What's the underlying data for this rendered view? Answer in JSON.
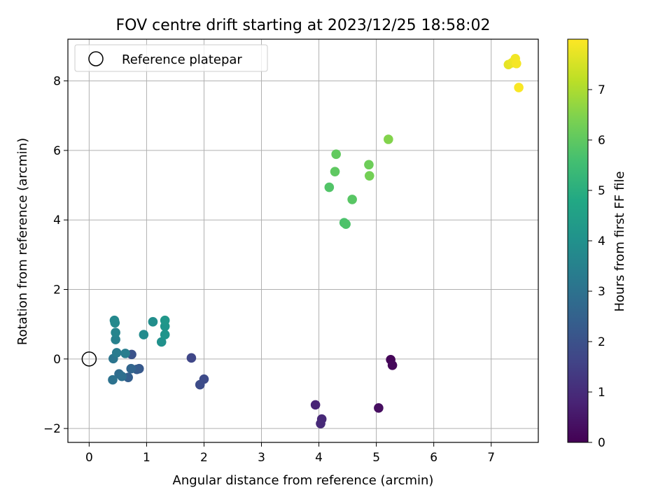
{
  "chart_data": {
    "type": "scatter",
    "title": "FOV centre drift starting at 2023/12/25 18:58:02",
    "xlabel": "Angular distance from reference (arcmin)",
    "ylabel": "Rotation from reference (arcmin)",
    "xlim": [
      -0.37,
      7.82
    ],
    "ylim": [
      -2.4,
      9.2
    ],
    "x_ticks": [
      0,
      1,
      2,
      3,
      4,
      5,
      6,
      7
    ],
    "y_ticks": [
      -2,
      0,
      2,
      4,
      6,
      8
    ],
    "grid": true,
    "legend": {
      "placement": "top-left",
      "entries": [
        {
          "label": "Reference platepar",
          "marker": "open-circle"
        }
      ]
    },
    "reference_point": {
      "x": 0,
      "y": 0
    },
    "colorbar": {
      "label": "Hours from first FF file",
      "range": [
        0,
        8
      ],
      "ticks": [
        0,
        1,
        2,
        3,
        4,
        5,
        6,
        7
      ],
      "colormap": "viridis"
    },
    "points": [
      {
        "x": 5.25,
        "y": -0.02,
        "c": 0.1
      },
      {
        "x": 5.28,
        "y": -0.18,
        "c": 0.15
      },
      {
        "x": 5.04,
        "y": -1.41,
        "c": 0.3
      },
      {
        "x": 3.94,
        "y": -1.32,
        "c": 0.8
      },
      {
        "x": 4.05,
        "y": -1.73,
        "c": 0.9
      },
      {
        "x": 4.03,
        "y": -1.86,
        "c": 0.95
      },
      {
        "x": 1.78,
        "y": 0.03,
        "c": 1.7
      },
      {
        "x": 2.0,
        "y": -0.58,
        "c": 1.8
      },
      {
        "x": 1.93,
        "y": -0.74,
        "c": 1.85
      },
      {
        "x": 0.74,
        "y": 0.13,
        "c": 2.0
      },
      {
        "x": 0.87,
        "y": -0.28,
        "c": 2.2
      },
      {
        "x": 0.83,
        "y": -0.3,
        "c": 2.3
      },
      {
        "x": 0.68,
        "y": -0.53,
        "c": 2.4
      },
      {
        "x": 0.73,
        "y": -0.28,
        "c": 2.6
      },
      {
        "x": 0.52,
        "y": -0.43,
        "c": 2.8
      },
      {
        "x": 0.57,
        "y": -0.5,
        "c": 2.9
      },
      {
        "x": 0.41,
        "y": -0.6,
        "c": 3.0
      },
      {
        "x": 0.42,
        "y": 0.01,
        "c": 3.1
      },
      {
        "x": 0.48,
        "y": 0.18,
        "c": 3.3
      },
      {
        "x": 0.63,
        "y": 0.16,
        "c": 3.4
      },
      {
        "x": 0.46,
        "y": 0.56,
        "c": 3.5
      },
      {
        "x": 0.46,
        "y": 0.76,
        "c": 3.6
      },
      {
        "x": 0.44,
        "y": 1.11,
        "c": 3.7
      },
      {
        "x": 0.45,
        "y": 1.04,
        "c": 3.75
      },
      {
        "x": 0.95,
        "y": 0.7,
        "c": 3.8
      },
      {
        "x": 1.11,
        "y": 1.07,
        "c": 3.9
      },
      {
        "x": 1.26,
        "y": 0.49,
        "c": 4.0
      },
      {
        "x": 1.32,
        "y": 0.7,
        "c": 4.1
      },
      {
        "x": 1.32,
        "y": 0.94,
        "c": 4.15
      },
      {
        "x": 1.32,
        "y": 1.11,
        "c": 4.2
      },
      {
        "x": 4.44,
        "y": 3.92,
        "c": 5.7
      },
      {
        "x": 4.47,
        "y": 3.88,
        "c": 5.75
      },
      {
        "x": 4.18,
        "y": 4.94,
        "c": 5.8
      },
      {
        "x": 4.58,
        "y": 4.59,
        "c": 5.9
      },
      {
        "x": 4.28,
        "y": 5.39,
        "c": 6.0
      },
      {
        "x": 4.3,
        "y": 5.89,
        "c": 6.05
      },
      {
        "x": 4.87,
        "y": 5.59,
        "c": 6.2
      },
      {
        "x": 4.88,
        "y": 5.27,
        "c": 6.3
      },
      {
        "x": 5.21,
        "y": 6.32,
        "c": 6.5
      },
      {
        "x": 7.3,
        "y": 8.47,
        "c": 7.7
      },
      {
        "x": 7.36,
        "y": 8.52,
        "c": 7.75
      },
      {
        "x": 7.4,
        "y": 8.57,
        "c": 7.8
      },
      {
        "x": 7.42,
        "y": 8.64,
        "c": 7.85
      },
      {
        "x": 7.44,
        "y": 8.5,
        "c": 7.9
      },
      {
        "x": 7.48,
        "y": 7.81,
        "c": 7.95
      }
    ]
  }
}
